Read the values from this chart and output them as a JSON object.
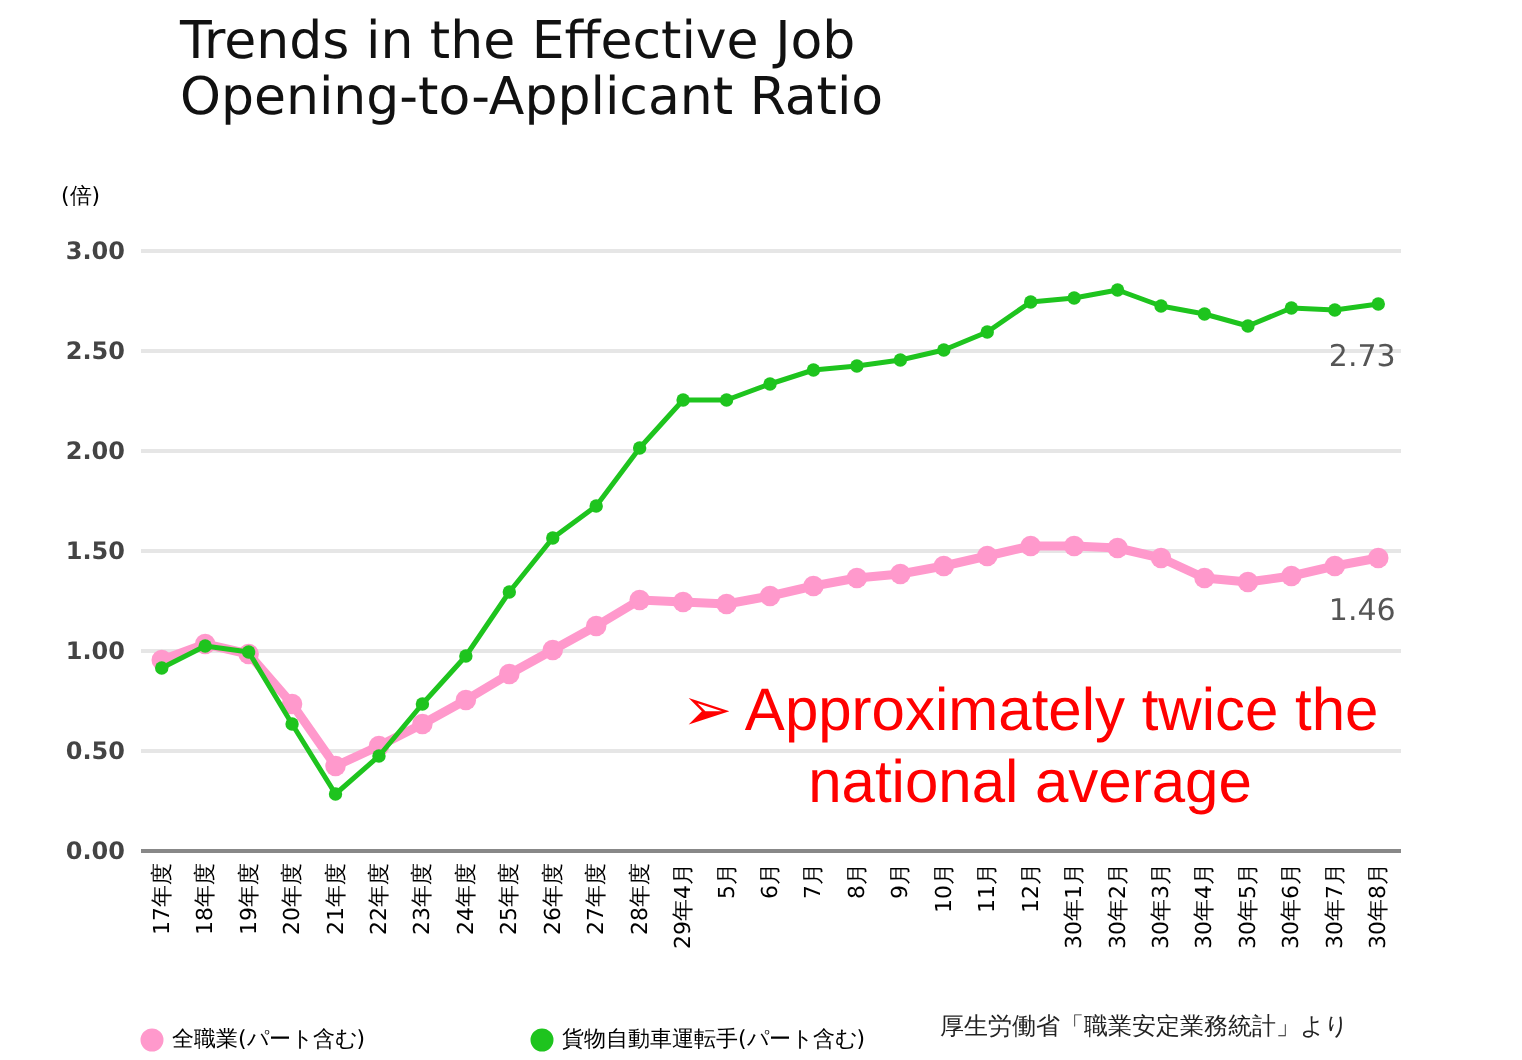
{
  "chart_data": {
    "type": "line",
    "title": "Trends in the Effective Job Opening-to-Applicant Ratio",
    "ylabel": "(倍)",
    "categories": [
      "17年度",
      "18年度",
      "19年度",
      "20年度",
      "21年度",
      "22年度",
      "23年度",
      "24年度",
      "25年度",
      "26年度",
      "27年度",
      "28年度",
      "29年4月",
      "5月",
      "6月",
      "7月",
      "8月",
      "9月",
      "10月",
      "11月",
      "12月",
      "30年1月",
      "30年2月",
      "30年3月",
      "30年4月",
      "30年5月",
      "30年6月",
      "30年7月",
      "30年8月"
    ],
    "series": [
      {
        "name": "全職業(パート含む)",
        "color": "#ff99cc",
        "values": [
          0.95,
          1.03,
          0.98,
          0.73,
          0.42,
          0.52,
          0.63,
          0.75,
          0.88,
          1.0,
          1.12,
          1.25,
          1.24,
          1.23,
          1.27,
          1.32,
          1.36,
          1.38,
          1.42,
          1.47,
          1.52,
          1.52,
          1.51,
          1.46,
          1.36,
          1.34,
          1.37,
          1.42,
          1.46
        ],
        "value_labels": [
          null,
          null,
          null,
          null,
          null,
          null,
          null,
          null,
          null,
          null,
          null,
          null,
          null,
          null,
          null,
          null,
          null,
          null,
          null,
          null,
          null,
          null,
          null,
          null,
          null,
          null,
          null,
          null,
          "1.46"
        ]
      },
      {
        "name": "貨物自動車運転手(パート含む)",
        "color": "#1ec41e",
        "values": [
          0.91,
          1.02,
          0.99,
          0.63,
          0.28,
          0.47,
          0.73,
          0.97,
          1.29,
          1.56,
          1.72,
          2.01,
          2.25,
          2.25,
          2.33,
          2.4,
          2.42,
          2.45,
          2.5,
          2.59,
          2.74,
          2.76,
          2.8,
          2.72,
          2.68,
          2.62,
          2.71,
          2.7,
          2.73
        ],
        "value_labels": [
          null,
          null,
          null,
          null,
          null,
          null,
          null,
          null,
          null,
          null,
          null,
          null,
          null,
          null,
          null,
          null,
          null,
          null,
          null,
          null,
          null,
          null,
          null,
          null,
          null,
          null,
          null,
          null,
          "2.73"
        ]
      }
    ],
    "ylim": [
      0,
      3
    ],
    "yticks": [
      {
        "value": 0,
        "label": "0.00"
      },
      {
        "value": 0.5,
        "label": "0.50"
      },
      {
        "value": 1,
        "label": "1.00"
      },
      {
        "value": 1.5,
        "label": "1.50"
      },
      {
        "value": 2,
        "label": "2.00"
      },
      {
        "value": 2.5,
        "label": "2.50"
      },
      {
        "value": 3,
        "label": "3.00"
      }
    ],
    "grid": "y",
    "legend": "bottom",
    "marker": "circle",
    "line_style": "solid",
    "annotations": [
      "➢ Approximately twice the national average",
      "厚生労働省「職業安定業務統計」より"
    ]
  }
}
